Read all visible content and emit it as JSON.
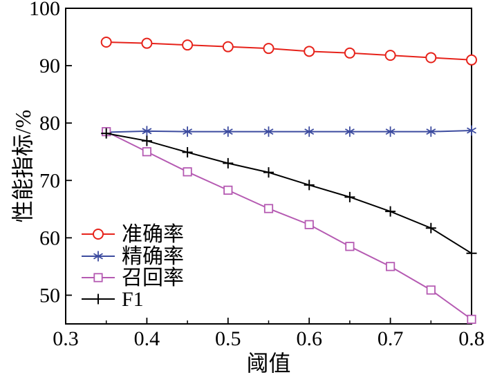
{
  "figure": {
    "background": "#ffffff"
  },
  "chart_data": {
    "type": "line",
    "title": "",
    "xlabel": "阈值",
    "ylabel": "性能指标/%",
    "xlim": [
      0.3,
      0.8
    ],
    "ylim": [
      45,
      100
    ],
    "xticks": [
      0.3,
      0.4,
      0.5,
      0.6,
      0.7,
      0.8
    ],
    "xtick_labels": [
      "0.3",
      "0.4",
      "0.5",
      "0.6",
      "0.7",
      "0.8"
    ],
    "minor_xticks": [
      0.35,
      0.45,
      0.55,
      0.65,
      0.75
    ],
    "yticks": [
      50,
      60,
      70,
      80,
      90,
      100
    ],
    "ytick_labels": [
      "50",
      "60",
      "70",
      "80",
      "90",
      "100"
    ],
    "grid": false,
    "legend_position": "inside lower-left",
    "axis_color": "#000000",
    "x": [
      0.35,
      0.4,
      0.45,
      0.5,
      0.55,
      0.6,
      0.65,
      0.7,
      0.75,
      0.8
    ],
    "series": [
      {
        "name": "准确率",
        "marker": "circle",
        "color": "#e6221a",
        "values": [
          94.1,
          93.9,
          93.6,
          93.3,
          93.0,
          92.5,
          92.2,
          91.8,
          91.4,
          91.0
        ]
      },
      {
        "name": "精确率",
        "marker": "asterisk",
        "color": "#3c4b9f",
        "values": [
          78.4,
          78.6,
          78.5,
          78.5,
          78.5,
          78.5,
          78.5,
          78.5,
          78.5,
          78.7
        ]
      },
      {
        "name": "召回率",
        "marker": "square",
        "color": "#b55ab2",
        "values": [
          78.5,
          75.0,
          71.5,
          68.3,
          65.1,
          62.3,
          58.5,
          55.0,
          50.9,
          45.8
        ]
      },
      {
        "name": "F1",
        "marker": "plus",
        "color": "#000000",
        "values": [
          78.2,
          76.9,
          74.9,
          73.0,
          71.4,
          69.2,
          67.1,
          64.6,
          61.7,
          57.3
        ]
      }
    ]
  }
}
